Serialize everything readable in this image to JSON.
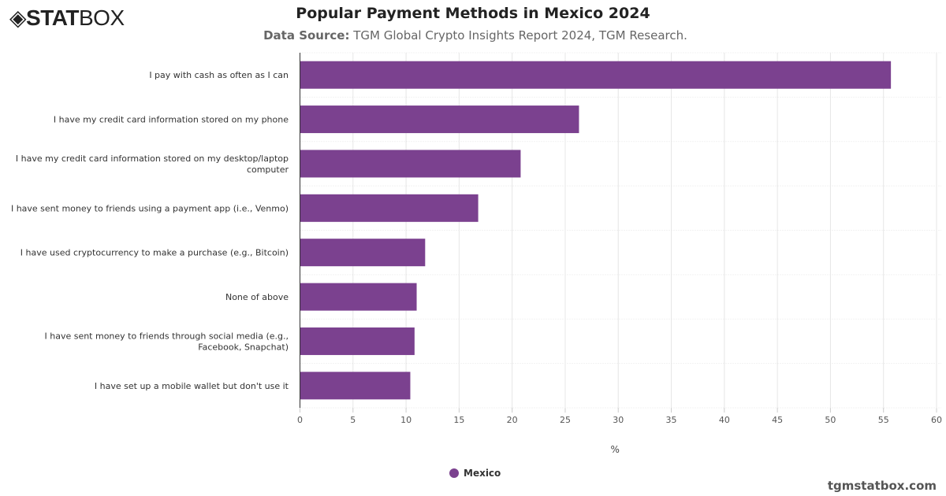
{
  "brand": {
    "logo_bold": "STAT",
    "logo_light": "BOX",
    "footer": "tgmstatbox.com"
  },
  "header": {
    "title": "Popular Payment Methods in Mexico 2024",
    "source_label": "Data Source:",
    "source_text": "TGM Global Crypto Insights Report 2024, TGM Research."
  },
  "colors": {
    "bar": "#7b418f"
  },
  "chart_data": {
    "type": "bar",
    "orientation": "horizontal",
    "title": "Popular Payment Methods in Mexico 2024",
    "categories": [
      "I pay with cash as often as I can",
      "I have my credit card information stored on my phone",
      "I have my credit card information stored on my desktop/laptop computer",
      "I have sent money to friends using a payment app (i.e., Venmo)",
      "I have used cryptocurrency to make a purchase (e.g., Bitcoin)",
      "None of above",
      "I have sent money to friends through social media (e.g., Facebook, Snapchat)",
      "I have set up a mobile wallet but don't use it"
    ],
    "series": [
      {
        "name": "Mexico",
        "values": [
          55.7,
          26.3,
          20.8,
          16.8,
          11.8,
          11.0,
          10.8,
          10.4
        ]
      }
    ],
    "xlabel": "%",
    "xlim": [
      0,
      60
    ],
    "ticks": [
      "0",
      "5",
      "10",
      "15",
      "20",
      "25",
      "30",
      "35",
      "40",
      "45",
      "50",
      "55",
      "60"
    ],
    "grid": true,
    "legend": "bottom-center"
  }
}
